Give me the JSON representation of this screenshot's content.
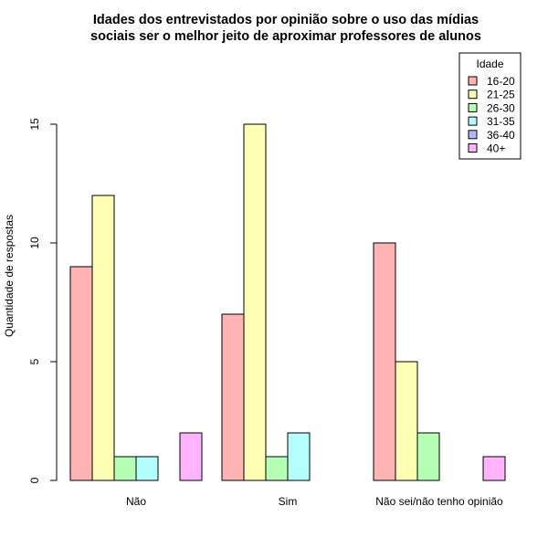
{
  "chart_data": {
    "type": "bar",
    "title": [
      "Idades dos entrevistados por opinião sobre o uso das mídias",
      "sociais ser o melhor jeito de aproximar professores de alunos"
    ],
    "xlabel": "",
    "ylabel": "Quantidade de respostas",
    "ylim": [
      0,
      15
    ],
    "yticks": [
      0,
      5,
      10,
      15
    ],
    "categories": [
      "Não",
      "Sim",
      "Não sei/não tenho opinião"
    ],
    "legend": {
      "title": "Idade",
      "position": "top-right"
    },
    "series": [
      {
        "name": "16-20",
        "color": "#FFB3B3",
        "values": [
          9,
          7,
          10
        ]
      },
      {
        "name": "21-25",
        "color": "#FFFFB3",
        "values": [
          12,
          15,
          5
        ]
      },
      {
        "name": "26-30",
        "color": "#B3FFB3",
        "values": [
          1,
          1,
          2
        ]
      },
      {
        "name": "31-35",
        "color": "#B3FFFF",
        "values": [
          1,
          2,
          0
        ]
      },
      {
        "name": "36-40",
        "color": "#B3B3FF",
        "values": [
          0,
          0,
          0
        ]
      },
      {
        "name": "40+",
        "color": "#FFB3FF",
        "values": [
          2,
          0,
          1
        ]
      }
    ]
  }
}
